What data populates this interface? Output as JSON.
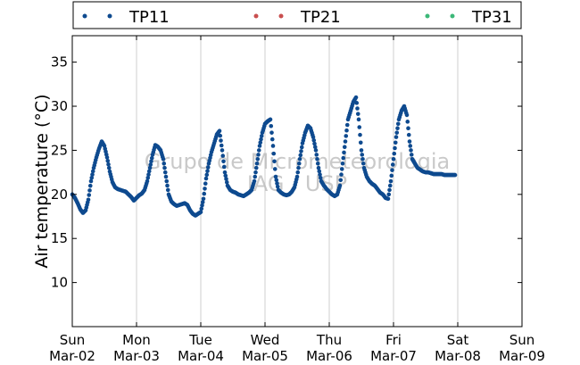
{
  "chart_data": {
    "type": "scatter",
    "ylabel": "Air temperature (°C)",
    "ylim": [
      5,
      38
    ],
    "yticks": [
      10,
      15,
      20,
      25,
      30,
      35
    ],
    "xlim_days": [
      0,
      7
    ],
    "xtick_labels": [
      {
        "day": "Sun",
        "date": "Mar-02"
      },
      {
        "day": "Mon",
        "date": "Mar-03"
      },
      {
        "day": "Tue",
        "date": "Mar-04"
      },
      {
        "day": "Wed",
        "date": "Mar-05"
      },
      {
        "day": "Thu",
        "date": "Mar-06"
      },
      {
        "day": "Fri",
        "date": "Mar-07"
      },
      {
        "day": "Sat",
        "date": "Mar-08"
      },
      {
        "day": "Sun",
        "date": "Mar-09"
      }
    ],
    "grid": "vertical",
    "legend_position": "top",
    "watermark": [
      "Grupo de Micrometeorologia",
      "IAG / USP"
    ],
    "series": [
      {
        "name": "TP11",
        "color": "#0e4a8f",
        "points": [
          [
            "Mar-02 00:00",
            20.0
          ],
          [
            "Mar-02 01:00",
            19.6
          ],
          [
            "Mar-02 02:00",
            19.0
          ],
          [
            "Mar-02 03:00",
            18.3
          ],
          [
            "Mar-02 04:00",
            17.9
          ],
          [
            "Mar-02 05:00",
            18.2
          ],
          [
            "Mar-02 06:00",
            19.4
          ],
          [
            "Mar-02 07:00",
            21.5
          ],
          [
            "Mar-02 08:00",
            23.0
          ],
          [
            "Mar-02 09:00",
            24.2
          ],
          [
            "Mar-02 10:00",
            25.2
          ],
          [
            "Mar-02 11:00",
            26.0
          ],
          [
            "Mar-02 12:00",
            25.5
          ],
          [
            "Mar-02 13:00",
            24.2
          ],
          [
            "Mar-02 14:00",
            22.6
          ],
          [
            "Mar-02 15:00",
            21.4
          ],
          [
            "Mar-02 16:00",
            20.8
          ],
          [
            "Mar-02 17:00",
            20.6
          ],
          [
            "Mar-02 18:00",
            20.5
          ],
          [
            "Mar-02 19:00",
            20.4
          ],
          [
            "Mar-02 20:00",
            20.3
          ],
          [
            "Mar-02 21:00",
            20.0
          ],
          [
            "Mar-02 22:00",
            19.7
          ],
          [
            "Mar-02 23:00",
            19.3
          ],
          [
            "Mar-03 00:00",
            19.6
          ],
          [
            "Mar-03 01:00",
            19.9
          ],
          [
            "Mar-03 02:00",
            20.1
          ],
          [
            "Mar-03 03:00",
            20.5
          ],
          [
            "Mar-03 04:00",
            21.5
          ],
          [
            "Mar-03 05:00",
            23.0
          ],
          [
            "Mar-03 06:00",
            24.5
          ],
          [
            "Mar-03 07:00",
            25.6
          ],
          [
            "Mar-03 08:00",
            25.4
          ],
          [
            "Mar-03 09:00",
            25.0
          ],
          [
            "Mar-03 10:00",
            24.0
          ],
          [
            "Mar-03 11:00",
            22.0
          ],
          [
            "Mar-03 12:00",
            20.0
          ],
          [
            "Mar-03 13:00",
            19.2
          ],
          [
            "Mar-03 14:00",
            18.9
          ],
          [
            "Mar-03 15:00",
            18.7
          ],
          [
            "Mar-03 16:00",
            18.8
          ],
          [
            "Mar-03 17:00",
            18.9
          ],
          [
            "Mar-03 18:00",
            19.0
          ],
          [
            "Mar-03 19:00",
            18.8
          ],
          [
            "Mar-03 20:00",
            18.2
          ],
          [
            "Mar-03 21:00",
            17.8
          ],
          [
            "Mar-03 22:00",
            17.6
          ],
          [
            "Mar-03 23:00",
            17.8
          ],
          [
            "Mar-04 00:00",
            18.0
          ],
          [
            "Mar-04 01:00",
            19.5
          ],
          [
            "Mar-04 02:00",
            21.8
          ],
          [
            "Mar-04 03:00",
            23.5
          ],
          [
            "Mar-04 04:00",
            24.8
          ],
          [
            "Mar-04 05:00",
            25.8
          ],
          [
            "Mar-04 06:00",
            26.8
          ],
          [
            "Mar-04 07:00",
            27.2
          ],
          [
            "Mar-04 08:00",
            25.0
          ],
          [
            "Mar-04 09:00",
            22.5
          ],
          [
            "Mar-04 10:00",
            21.0
          ],
          [
            "Mar-04 11:00",
            20.5
          ],
          [
            "Mar-04 12:00",
            20.3
          ],
          [
            "Mar-04 13:00",
            20.2
          ],
          [
            "Mar-04 14:00",
            20.0
          ],
          [
            "Mar-04 15:00",
            19.9
          ],
          [
            "Mar-04 16:00",
            19.8
          ],
          [
            "Mar-04 17:00",
            20.0
          ],
          [
            "Mar-04 18:00",
            20.2
          ],
          [
            "Mar-04 19:00",
            20.5
          ],
          [
            "Mar-04 20:00",
            21.5
          ],
          [
            "Mar-04 21:00",
            23.5
          ],
          [
            "Mar-04 22:00",
            25.5
          ],
          [
            "Mar-04 23:00",
            27.0
          ],
          [
            "Mar-05 00:00",
            28.0
          ],
          [
            "Mar-05 01:00",
            28.3
          ],
          [
            "Mar-05 02:00",
            28.5
          ],
          [
            "Mar-05 03:00",
            25.5
          ],
          [
            "Mar-05 04:00",
            22.0
          ],
          [
            "Mar-05 05:00",
            20.5
          ],
          [
            "Mar-05 06:00",
            20.2
          ],
          [
            "Mar-05 07:00",
            20.0
          ],
          [
            "Mar-05 08:00",
            19.9
          ],
          [
            "Mar-05 09:00",
            20.0
          ],
          [
            "Mar-05 10:00",
            20.3
          ],
          [
            "Mar-05 11:00",
            20.8
          ],
          [
            "Mar-05 12:00",
            22.0
          ],
          [
            "Mar-05 13:00",
            24.0
          ],
          [
            "Mar-05 14:00",
            25.8
          ],
          [
            "Mar-05 15:00",
            27.0
          ],
          [
            "Mar-05 16:00",
            27.8
          ],
          [
            "Mar-05 17:00",
            27.5
          ],
          [
            "Mar-05 18:00",
            26.5
          ],
          [
            "Mar-05 19:00",
            25.0
          ],
          [
            "Mar-05 20:00",
            23.0
          ],
          [
            "Mar-05 21:00",
            21.5
          ],
          [
            "Mar-05 22:00",
            21.0
          ],
          [
            "Mar-05 23:00",
            20.6
          ],
          [
            "Mar-06 00:00",
            20.3
          ],
          [
            "Mar-06 01:00",
            20.0
          ],
          [
            "Mar-06 02:00",
            19.8
          ],
          [
            "Mar-06 03:00",
            20.0
          ],
          [
            "Mar-06 04:00",
            21.0
          ],
          [
            "Mar-06 05:00",
            23.5
          ],
          [
            "Mar-06 06:00",
            26.0
          ],
          [
            "Mar-06 07:00",
            28.5
          ],
          [
            "Mar-06 08:00",
            29.5
          ],
          [
            "Mar-06 09:00",
            30.5
          ],
          [
            "Mar-06 10:00",
            31.0
          ],
          [
            "Mar-06 11:00",
            28.5
          ],
          [
            "Mar-06 12:00",
            25.0
          ],
          [
            "Mar-06 13:00",
            23.0
          ],
          [
            "Mar-06 14:00",
            22.0
          ],
          [
            "Mar-06 15:00",
            21.5
          ],
          [
            "Mar-06 16:00",
            21.2
          ],
          [
            "Mar-06 17:00",
            21.0
          ],
          [
            "Mar-06 18:00",
            20.6
          ],
          [
            "Mar-06 19:00",
            20.2
          ],
          [
            "Mar-06 20:00",
            20.0
          ],
          [
            "Mar-06 21:00",
            19.6
          ],
          [
            "Mar-06 22:00",
            19.5
          ],
          [
            "Mar-06 23:00",
            21.5
          ],
          [
            "Mar-07 00:00",
            24.0
          ],
          [
            "Mar-07 01:00",
            26.5
          ],
          [
            "Mar-07 02:00",
            28.5
          ],
          [
            "Mar-07 03:00",
            29.5
          ],
          [
            "Mar-07 04:00",
            30.0
          ],
          [
            "Mar-07 05:00",
            29.0
          ],
          [
            "Mar-07 06:00",
            26.0
          ],
          [
            "Mar-07 07:00",
            24.0
          ],
          [
            "Mar-07 08:00",
            23.5
          ],
          [
            "Mar-07 09:00",
            23.0
          ],
          [
            "Mar-07 10:00",
            22.8
          ],
          [
            "Mar-07 11:00",
            22.6
          ],
          [
            "Mar-07 12:00",
            22.5
          ],
          [
            "Mar-07 13:00",
            22.5
          ],
          [
            "Mar-07 14:00",
            22.4
          ],
          [
            "Mar-07 15:00",
            22.3
          ],
          [
            "Mar-07 16:00",
            22.3
          ],
          [
            "Mar-07 17:00",
            22.3
          ],
          [
            "Mar-07 18:00",
            22.3
          ],
          [
            "Mar-07 19:00",
            22.2
          ],
          [
            "Mar-07 20:00",
            22.2
          ],
          [
            "Mar-07 21:00",
            22.2
          ],
          [
            "Mar-07 22:00",
            22.2
          ],
          [
            "Mar-07 23:00",
            22.2
          ]
        ]
      },
      {
        "name": "TP21",
        "color": "#c94f4f",
        "points": []
      },
      {
        "name": "TP31",
        "color": "#3cb878",
        "points": []
      }
    ]
  }
}
